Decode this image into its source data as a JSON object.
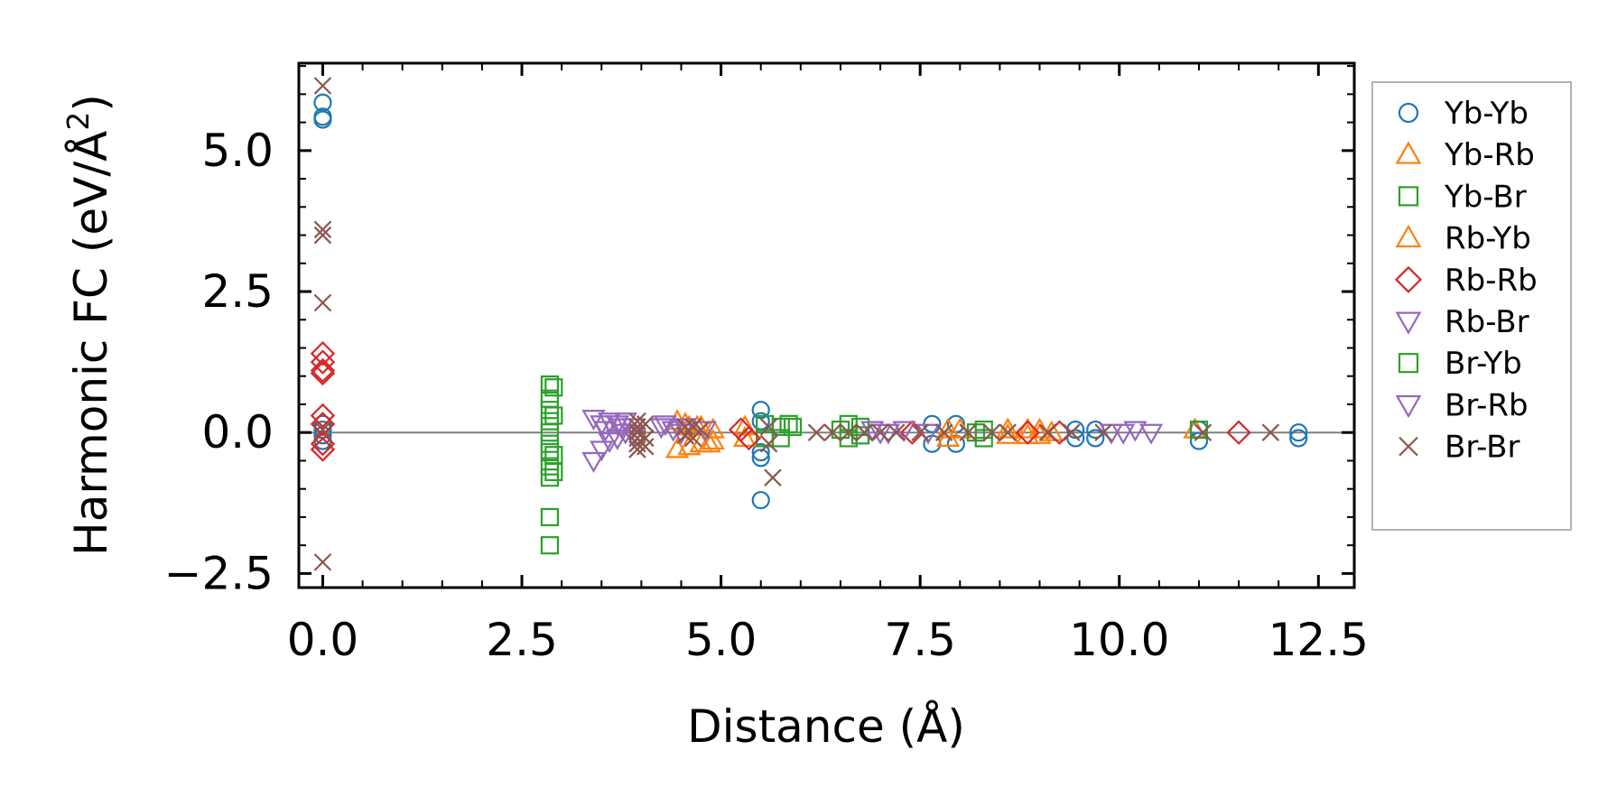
{
  "chart_data": {
    "type": "scatter",
    "title": "",
    "xlabel": "Distance (Å)",
    "ylabel_main": "Harmonic FC (eV/Å",
    "ylabel_sup": "2",
    "ylabel_close": ")",
    "xlim": [
      -0.3,
      12.95
    ],
    "ylim": [
      -2.75,
      6.55
    ],
    "xticks": [
      0.0,
      2.5,
      5.0,
      7.5,
      10.0,
      12.5
    ],
    "xtick_labels": [
      "0.0",
      "2.5",
      "5.0",
      "7.5",
      "10.0",
      "12.5"
    ],
    "yticks": [
      -2.5,
      0.0,
      2.5,
      5.0
    ],
    "ytick_labels": [
      "−2.5",
      "0.0",
      "2.5",
      "5.0"
    ],
    "zero_line": 0,
    "legend_position": "outside-right",
    "series": [
      {
        "name": "Yb-Yb",
        "marker": "circle",
        "color": "#1f77b4",
        "points": [
          [
            0,
            5.85
          ],
          [
            0,
            5.6
          ],
          [
            0,
            5.55
          ],
          [
            0,
            0.15
          ],
          [
            0,
            0.05
          ],
          [
            0,
            -0.05
          ],
          [
            0,
            -0.15
          ],
          [
            5.5,
            0.4
          ],
          [
            5.5,
            0.2
          ],
          [
            5.5,
            -0.35
          ],
          [
            5.5,
            -0.45
          ],
          [
            5.5,
            -1.2
          ],
          [
            7.65,
            0.15
          ],
          [
            7.65,
            -0.2
          ],
          [
            7.95,
            0.15
          ],
          [
            7.95,
            -0.2
          ],
          [
            9.45,
            0.05
          ],
          [
            9.45,
            -0.1
          ],
          [
            9.7,
            0.05
          ],
          [
            9.7,
            -0.1
          ],
          [
            11.0,
            0.05
          ],
          [
            11.0,
            -0.15
          ],
          [
            12.25,
            0.0
          ],
          [
            12.25,
            -0.1
          ]
        ]
      },
      {
        "name": "Yb-Rb",
        "marker": "triangle-up",
        "color": "#ff7f0e",
        "points": [
          [
            4.45,
            0.2
          ],
          [
            4.45,
            -0.3
          ],
          [
            4.6,
            0.1
          ],
          [
            4.6,
            -0.25
          ],
          [
            4.75,
            0.1
          ],
          [
            4.75,
            -0.2
          ],
          [
            4.9,
            0.05
          ],
          [
            4.9,
            -0.15
          ],
          [
            5.3,
            0.1
          ],
          [
            5.3,
            -0.1
          ],
          [
            7.85,
            0.05
          ],
          [
            7.85,
            -0.1
          ],
          [
            8.6,
            0.05
          ],
          [
            8.6,
            -0.05
          ],
          [
            8.85,
            0.05
          ],
          [
            8.85,
            -0.05
          ],
          [
            9.0,
            0.05
          ],
          [
            9.0,
            -0.05
          ],
          [
            10.95,
            0.05
          ]
        ]
      },
      {
        "name": "Yb-Br",
        "marker": "square",
        "color": "#2ca02c",
        "points": [
          [
            2.85,
            0.85
          ],
          [
            2.85,
            0.6
          ],
          [
            2.85,
            0.4
          ],
          [
            2.85,
            0.2
          ],
          [
            2.85,
            0.0
          ],
          [
            2.85,
            -0.2
          ],
          [
            2.85,
            -0.35
          ],
          [
            2.85,
            -0.6
          ],
          [
            2.85,
            -0.8
          ],
          [
            2.85,
            -1.5
          ],
          [
            2.85,
            -2.0
          ],
          [
            5.55,
            0.15
          ],
          [
            5.55,
            -0.1
          ],
          [
            5.75,
            0.1
          ],
          [
            5.75,
            -0.1
          ],
          [
            5.9,
            0.1
          ],
          [
            6.6,
            0.15
          ],
          [
            6.6,
            -0.1
          ],
          [
            6.75,
            0.1
          ],
          [
            6.75,
            -0.05
          ],
          [
            8.3,
            0.05
          ],
          [
            8.3,
            -0.1
          ],
          [
            11.0,
            0.05
          ]
        ]
      },
      {
        "name": "Rb-Yb",
        "marker": "triangle-up",
        "color": "#ff7f0e",
        "points": [
          [
            4.55,
            0.15
          ],
          [
            4.7,
            0.1
          ],
          [
            4.85,
            -0.2
          ],
          [
            8.0,
            0.05
          ],
          [
            9.15,
            0.0
          ]
        ]
      },
      {
        "name": "Rb-Rb",
        "marker": "diamond",
        "color": "#d62728",
        "points": [
          [
            0,
            1.4
          ],
          [
            0,
            1.25
          ],
          [
            0,
            1.1
          ],
          [
            0,
            1.05
          ],
          [
            0,
            0.3
          ],
          [
            0,
            0.15
          ],
          [
            0,
            -0.2
          ],
          [
            0,
            -0.3
          ],
          [
            5.25,
            0.05
          ],
          [
            5.35,
            -0.1
          ],
          [
            7.4,
            0.0
          ],
          [
            8.85,
            0.0
          ],
          [
            9.25,
            0.0
          ],
          [
            11.5,
            0.0
          ]
        ]
      },
      {
        "name": "Rb-Br",
        "marker": "triangle-down",
        "color": "#9467bd",
        "points": [
          [
            3.4,
            0.25
          ],
          [
            3.4,
            -0.5
          ],
          [
            3.5,
            0.15
          ],
          [
            3.5,
            -0.3
          ],
          [
            3.6,
            0.2
          ],
          [
            3.6,
            -0.15
          ],
          [
            3.7,
            0.15
          ],
          [
            3.7,
            -0.1
          ],
          [
            3.8,
            0.2
          ],
          [
            3.8,
            0.0
          ],
          [
            3.9,
            0.1
          ],
          [
            3.9,
            -0.05
          ],
          [
            4.3,
            0.15
          ],
          [
            4.4,
            0.05
          ],
          [
            4.55,
            0.1
          ],
          [
            4.8,
            0.05
          ],
          [
            6.9,
            0.05
          ],
          [
            7.1,
            0.0
          ],
          [
            7.3,
            0.05
          ],
          [
            7.6,
            0.0
          ],
          [
            9.9,
            0.0
          ],
          [
            10.05,
            0.0
          ],
          [
            10.4,
            0.0
          ]
        ]
      },
      {
        "name": "Br-Yb",
        "marker": "square",
        "color": "#2ca02c",
        "points": [
          [
            2.9,
            0.8
          ],
          [
            2.9,
            0.3
          ],
          [
            2.9,
            -0.4
          ],
          [
            2.9,
            -0.7
          ],
          [
            5.85,
            0.15
          ],
          [
            6.5,
            0.05
          ],
          [
            8.2,
            0.0
          ]
        ]
      },
      {
        "name": "Br-Rb",
        "marker": "triangle-down",
        "color": "#9467bd",
        "points": [
          [
            3.55,
            0.05
          ],
          [
            3.75,
            0.1
          ],
          [
            4.25,
            0.1
          ],
          [
            4.5,
            0.0
          ],
          [
            7.0,
            0.0
          ],
          [
            10.2,
            0.05
          ]
        ]
      },
      {
        "name": "Br-Br",
        "marker": "x",
        "color": "#8c564b",
        "points": [
          [
            0,
            6.15
          ],
          [
            0,
            3.6
          ],
          [
            0,
            3.5
          ],
          [
            0,
            2.3
          ],
          [
            0,
            0.05
          ],
          [
            0,
            -2.3
          ],
          [
            3.95,
            0.2
          ],
          [
            3.95,
            0.1
          ],
          [
            3.95,
            0.0
          ],
          [
            3.95,
            -0.1
          ],
          [
            3.95,
            -0.2
          ],
          [
            3.95,
            -0.3
          ],
          [
            4.05,
            0.15
          ],
          [
            4.05,
            -0.1
          ],
          [
            4.05,
            -0.25
          ],
          [
            4.55,
            0.1
          ],
          [
            4.55,
            -0.05
          ],
          [
            4.65,
            0.1
          ],
          [
            4.65,
            -0.1
          ],
          [
            4.75,
            0.05
          ],
          [
            5.6,
            0.1
          ],
          [
            5.6,
            -0.2
          ],
          [
            5.65,
            -0.8
          ],
          [
            6.2,
            0.0
          ],
          [
            6.4,
            0.0
          ],
          [
            6.6,
            0.0
          ],
          [
            6.8,
            0.0
          ],
          [
            7.0,
            0.0
          ],
          [
            7.2,
            0.0
          ],
          [
            7.5,
            0.0
          ],
          [
            7.8,
            0.0
          ],
          [
            8.1,
            0.0
          ],
          [
            8.4,
            0.0
          ],
          [
            8.6,
            0.0
          ],
          [
            9.1,
            0.0
          ],
          [
            9.4,
            0.0
          ],
          [
            9.8,
            0.0
          ],
          [
            11.05,
            0.0
          ],
          [
            11.9,
            0.0
          ]
        ]
      }
    ]
  }
}
